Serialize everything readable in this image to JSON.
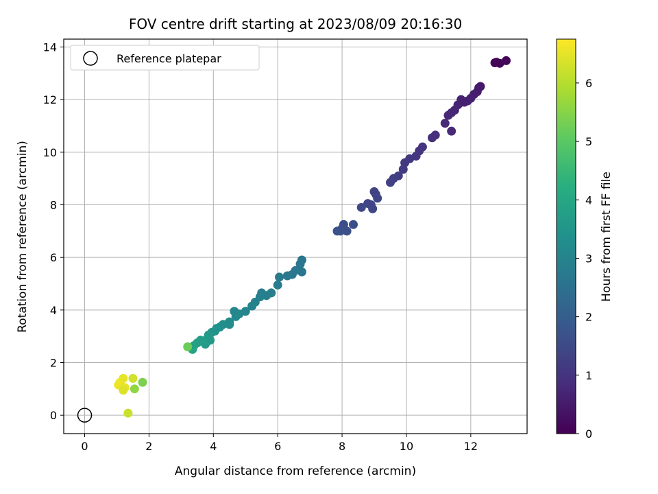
{
  "chart_data": {
    "type": "scatter",
    "title": "FOV centre drift starting at 2023/08/09 20:16:30",
    "xlabel": "Angular distance from reference (arcmin)",
    "ylabel": "Rotation from reference (arcmin)",
    "xlim": [
      -0.65,
      13.75
    ],
    "ylim": [
      -0.7,
      14.3
    ],
    "xticks": [
      0,
      2,
      4,
      6,
      8,
      10,
      12
    ],
    "yticks": [
      0,
      2,
      4,
      6,
      8,
      10,
      12,
      14
    ],
    "grid": true,
    "legend": {
      "placement": "top-left",
      "entries": [
        {
          "label": "Reference platepar",
          "marker": "open-circle"
        }
      ]
    },
    "reference_point": {
      "x": 0,
      "y": 0
    },
    "colorbar": {
      "label": "Hours from first FF file",
      "range": [
        0,
        6.75
      ],
      "ticks": [
        0,
        1,
        2,
        3,
        4,
        5,
        6
      ],
      "colormap": "viridis"
    },
    "series": [
      {
        "points": [
          [
            12.75,
            13.4,
            0.05
          ],
          [
            12.9,
            13.38,
            0.08
          ],
          [
            13.1,
            13.48,
            0.1
          ],
          [
            12.8,
            13.42,
            0.07
          ],
          [
            12.3,
            12.5,
            0.5
          ],
          [
            12.2,
            12.3,
            0.52
          ],
          [
            12.1,
            12.2,
            0.55
          ],
          [
            12.25,
            12.45,
            0.5
          ],
          [
            12.0,
            12.05,
            0.6
          ],
          [
            11.9,
            11.95,
            0.62
          ],
          [
            11.7,
            11.9,
            0.65
          ],
          [
            11.6,
            11.8,
            0.68
          ],
          [
            11.7,
            12.0,
            0.63
          ],
          [
            11.5,
            11.6,
            0.7
          ],
          [
            11.4,
            11.5,
            0.72
          ],
          [
            11.3,
            11.4,
            0.75
          ],
          [
            11.2,
            11.1,
            0.78
          ],
          [
            11.4,
            10.8,
            0.8
          ],
          [
            11.8,
            11.9,
            0.6
          ],
          [
            10.9,
            10.65,
            0.9
          ],
          [
            10.8,
            10.55,
            0.92
          ],
          [
            10.5,
            10.2,
            1.0
          ],
          [
            10.4,
            10.05,
            1.02
          ],
          [
            10.3,
            9.85,
            1.05
          ],
          [
            10.1,
            9.75,
            1.1
          ],
          [
            9.95,
            9.6,
            1.12
          ],
          [
            9.9,
            9.35,
            1.15
          ],
          [
            9.75,
            9.1,
            1.2
          ],
          [
            9.6,
            9.0,
            1.25
          ],
          [
            9.5,
            8.85,
            1.3
          ],
          [
            9.05,
            8.4,
            1.35
          ],
          [
            9.0,
            8.5,
            1.33
          ],
          [
            9.1,
            8.25,
            1.38
          ],
          [
            8.9,
            8.0,
            1.4
          ],
          [
            8.95,
            7.85,
            1.42
          ],
          [
            8.8,
            8.05,
            1.4
          ],
          [
            8.6,
            7.9,
            1.45
          ],
          [
            8.35,
            7.25,
            1.6
          ],
          [
            8.15,
            7.0,
            1.65
          ],
          [
            8.05,
            7.25,
            1.6
          ],
          [
            8.0,
            7.1,
            1.62
          ],
          [
            7.95,
            7.0,
            1.65
          ],
          [
            7.85,
            7.0,
            1.66
          ],
          [
            6.75,
            5.9,
            2.6
          ],
          [
            6.7,
            5.75,
            2.62
          ],
          [
            6.75,
            5.45,
            2.65
          ],
          [
            6.55,
            5.5,
            2.68
          ],
          [
            6.45,
            5.35,
            2.7
          ],
          [
            6.3,
            5.3,
            2.72
          ],
          [
            6.05,
            5.25,
            2.75
          ],
          [
            6.0,
            4.95,
            2.8
          ],
          [
            5.8,
            4.65,
            2.85
          ],
          [
            5.65,
            4.55,
            2.88
          ],
          [
            5.5,
            4.65,
            2.85
          ],
          [
            5.45,
            4.5,
            2.9
          ],
          [
            5.3,
            4.3,
            2.95
          ],
          [
            5.2,
            4.15,
            3.0
          ],
          [
            5.0,
            3.95,
            3.05
          ],
          [
            4.8,
            3.85,
            3.1
          ],
          [
            4.7,
            3.75,
            3.15
          ],
          [
            4.65,
            3.95,
            3.1
          ],
          [
            4.5,
            3.55,
            3.2
          ],
          [
            4.5,
            3.45,
            3.25
          ],
          [
            4.3,
            3.45,
            3.3
          ],
          [
            4.2,
            3.35,
            3.35
          ],
          [
            4.1,
            3.3,
            3.4
          ],
          [
            4.05,
            3.2,
            3.45
          ],
          [
            3.95,
            3.15,
            3.5
          ],
          [
            3.85,
            3.05,
            3.55
          ],
          [
            3.8,
            2.9,
            3.6
          ],
          [
            3.9,
            2.85,
            3.62
          ],
          [
            3.75,
            2.7,
            3.65
          ],
          [
            3.7,
            2.8,
            3.7
          ],
          [
            3.6,
            2.85,
            3.72
          ],
          [
            3.5,
            2.75,
            3.75
          ],
          [
            3.4,
            2.65,
            3.8
          ],
          [
            3.35,
            2.5,
            3.9
          ],
          [
            3.2,
            2.6,
            5.2
          ],
          [
            1.2,
            1.4,
            6.5
          ],
          [
            1.1,
            1.25,
            6.55
          ],
          [
            1.05,
            1.15,
            6.6
          ],
          [
            1.25,
            1.05,
            6.5
          ],
          [
            1.15,
            1.1,
            6.55
          ],
          [
            1.2,
            0.95,
            6.4
          ],
          [
            1.5,
            1.4,
            6.3
          ],
          [
            1.55,
            1.0,
            5.6
          ],
          [
            1.8,
            1.25,
            5.4
          ],
          [
            1.35,
            0.08,
            6.2
          ]
        ]
      }
    ]
  }
}
